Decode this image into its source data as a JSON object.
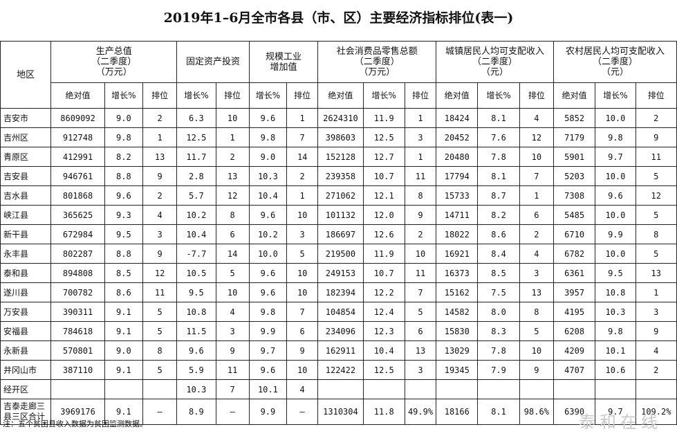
{
  "title": "2019年1–6月全市各县（市、区）主要经济指标排位(表一)",
  "header": {
    "region": "地区",
    "gdp": [
      "生产总值",
      "（二季度）",
      "（万元）"
    ],
    "fixed_invest": "固定资产投资",
    "industry": [
      "规模工业",
      "增加值"
    ],
    "retail": [
      "社会消费品零售总额",
      "（二季度）",
      "（万元）"
    ],
    "urban_income": [
      "城镇居民人均可支配收入",
      "（二季度）",
      "（元）"
    ],
    "rural_income": [
      "农村居民人均可支配收入",
      "（二季度）",
      "（元）"
    ],
    "sub": {
      "absolute": "绝对值",
      "growth": "增长%",
      "rank": "排位"
    }
  },
  "rows": [
    {
      "name": "吉安市",
      "v": [
        "8609092",
        "9.0",
        "2",
        "6.3",
        "10",
        "9.6",
        "1",
        "2624310",
        "11.9",
        "1",
        "18424",
        "8.1",
        "4",
        "5852",
        "10.0",
        "2"
      ]
    },
    {
      "name": "吉州区",
      "v": [
        "912748",
        "9.8",
        "1",
        "12.5",
        "1",
        "9.8",
        "7",
        "398603",
        "12.5",
        "3",
        "20452",
        "7.6",
        "12",
        "7179",
        "9.8",
        "9"
      ]
    },
    {
      "name": "青原区",
      "v": [
        "412991",
        "8.2",
        "13",
        "11.7",
        "2",
        "9.0",
        "14",
        "152128",
        "12.7",
        "1",
        "20480",
        "7.8",
        "10",
        "5901",
        "9.7",
        "11"
      ]
    },
    {
      "name": "吉安县",
      "v": [
        "946761",
        "8.8",
        "9",
        "2.8",
        "13",
        "10.3",
        "2",
        "239358",
        "10.7",
        "11",
        "17794",
        "8.1",
        "7",
        "5203",
        "10.0",
        "5"
      ]
    },
    {
      "name": "吉水县",
      "v": [
        "801868",
        "9.6",
        "2",
        "5.7",
        "12",
        "10.4",
        "1",
        "271062",
        "12.1",
        "8",
        "15733",
        "8.7",
        "1",
        "7308",
        "9.6",
        "12"
      ]
    },
    {
      "name": "峡江县",
      "v": [
        "365625",
        "9.3",
        "4",
        "10.2",
        "8",
        "9.6",
        "10",
        "101132",
        "12.0",
        "9",
        "14711",
        "8.2",
        "6",
        "5485",
        "10.0",
        "5"
      ]
    },
    {
      "name": "新干县",
      "v": [
        "672984",
        "9.5",
        "3",
        "10.4",
        "6",
        "10.2",
        "3",
        "186697",
        "12.6",
        "2",
        "18022",
        "8.6",
        "2",
        "6710",
        "9.9",
        "8"
      ]
    },
    {
      "name": "永丰县",
      "v": [
        "802287",
        "8.8",
        "9",
        "-7.7",
        "14",
        "10.0",
        "5",
        "219500",
        "11.9",
        "10",
        "16921",
        "8.4",
        "4",
        "6782",
        "10.0",
        "5"
      ]
    },
    {
      "name": "泰和县",
      "v": [
        "894808",
        "8.5",
        "12",
        "10.5",
        "5",
        "9.6",
        "10",
        "249153",
        "10.7",
        "11",
        "16373",
        "8.5",
        "3",
        "6361",
        "9.5",
        "13"
      ]
    },
    {
      "name": "遂川县",
      "v": [
        "700782",
        "8.6",
        "11",
        "9.5",
        "10",
        "9.6",
        "10",
        "182394",
        "12.2",
        "7",
        "15162",
        "7.5",
        "13",
        "3957",
        "10.8",
        "1"
      ]
    },
    {
      "name": "万安县",
      "v": [
        "390311",
        "9.1",
        "5",
        "10.8",
        "4",
        "9.8",
        "7",
        "104854",
        "12.4",
        "5",
        "14582",
        "8.0",
        "8",
        "4195",
        "10.3",
        "3"
      ]
    },
    {
      "name": "安福县",
      "v": [
        "784618",
        "9.1",
        "5",
        "11.5",
        "3",
        "9.9",
        "6",
        "234096",
        "12.3",
        "6",
        "15830",
        "8.3",
        "5",
        "6208",
        "9.8",
        "9"
      ]
    },
    {
      "name": "永新县",
      "v": [
        "570801",
        "9.0",
        "8",
        "9.6",
        "9",
        "9.7",
        "9",
        "162911",
        "10.4",
        "13",
        "13029",
        "7.8",
        "10",
        "4209",
        "10.1",
        "4"
      ]
    },
    {
      "name": "井冈山市",
      "v": [
        "387110",
        "9.1",
        "5",
        "5.9",
        "11",
        "9.6",
        "10",
        "122422",
        "12.5",
        "3",
        "19345",
        "7.9",
        "9",
        "4707",
        "10.6",
        "2"
      ]
    },
    {
      "name": "经开区",
      "v": [
        "",
        "",
        "",
        "10.3",
        "7",
        "10.1",
        "4",
        "",
        "",
        "",
        "",
        "",
        "",
        "",
        "",
        ""
      ]
    }
  ],
  "total": {
    "name": "吉泰走廊三县三区合计",
    "v": [
      "3969176",
      "9.1",
      "–",
      "8.9",
      "–",
      "9.9",
      "–",
      "1310304",
      "11.8",
      "49.9%",
      "18166",
      "8.1",
      "98.6%",
      "6390",
      "9.7",
      "109.2%"
    ]
  },
  "note": "注：五个贫困县收入数据为贫困监测数据。",
  "watermark": "泰和在线"
}
